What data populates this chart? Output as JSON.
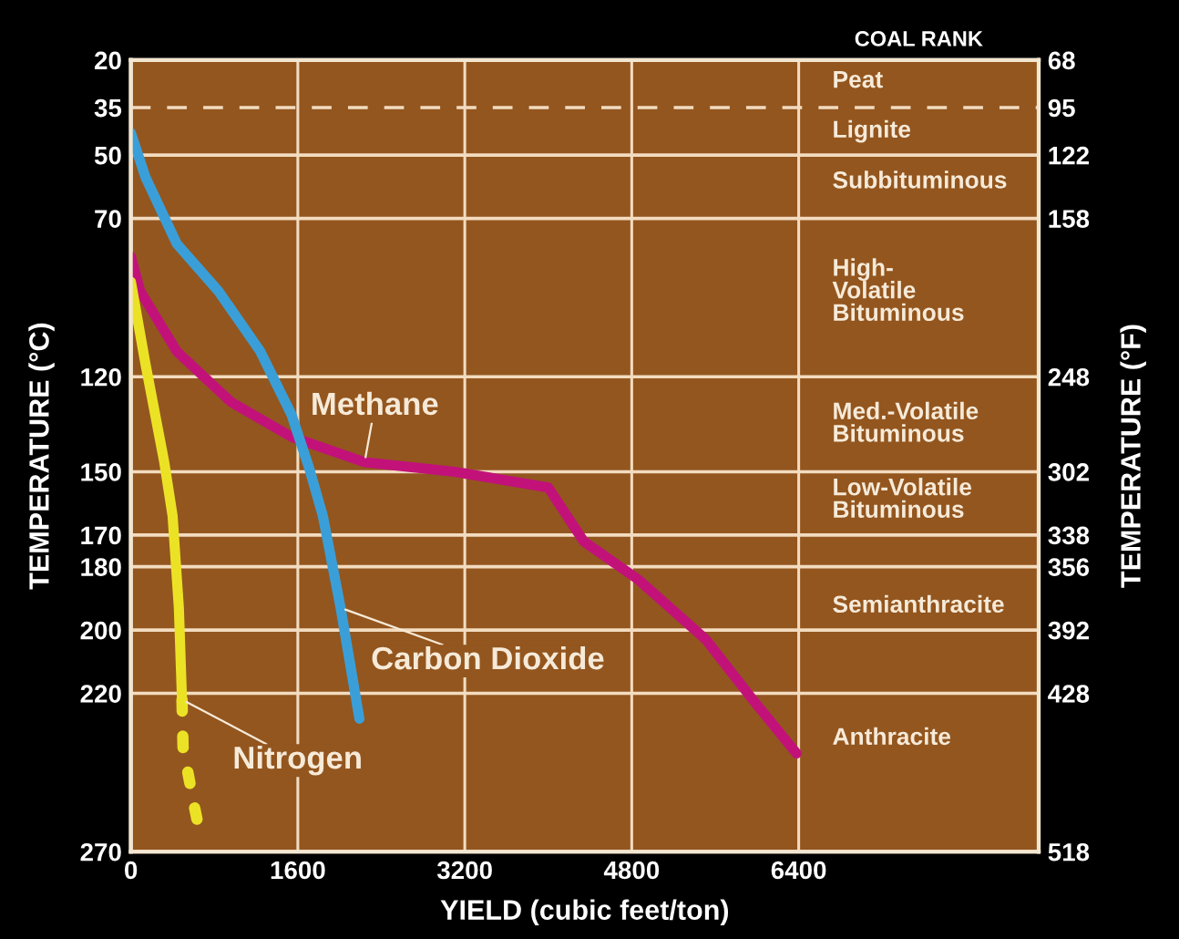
{
  "chart_data": {
    "type": "line",
    "xlabel": "YIELD (cubic feet/ton)",
    "ylabel": "TEMPERATURE (°C)",
    "y2label": "TEMPERATURE (°F)",
    "annotations": [
      "COAL RANK",
      "Peat",
      "Lignite",
      "Subbituminous",
      "High-\nVolatile\nBituminous",
      "Med.-Volatile\nBituminous",
      "Low-Volatile\nBituminous",
      "Semianthracite",
      "Anthracite"
    ],
    "xlim": [
      0,
      8700
    ],
    "xticks": [
      0,
      1600,
      3200,
      4800,
      6400
    ],
    "ylim": [
      270,
      20
    ],
    "yticks": [
      20,
      35,
      50,
      70,
      120,
      150,
      170,
      180,
      200,
      220,
      270
    ],
    "y2lim": [
      518,
      68
    ],
    "y2ticks": [
      68,
      95,
      122,
      158,
      248,
      302,
      338,
      356,
      392,
      428,
      518
    ],
    "grid": "x",
    "legend": false,
    "marker": "none",
    "series": [
      {
        "name": "Methane",
        "color": "#c2127a",
        "line_style": "solid",
        "x": [
          0,
          90,
          440,
          960,
          1540,
          2240,
          3100,
          4000,
          4340,
          4860,
          5510,
          5960,
          6380
        ],
        "values": [
          82,
          93,
          112,
          128,
          139,
          147,
          150,
          155,
          172,
          184,
          203,
          222,
          239
        ]
      },
      {
        "name": "Carbon Dioxide",
        "color": "#3a9fd8",
        "line_style": "solid",
        "x": [
          0,
          140,
          440,
          840,
          1240,
          1540,
          1710,
          1840,
          2010,
          2190
        ],
        "values": [
          43,
          57,
          78,
          93,
          112,
          132,
          149,
          164,
          193,
          228
        ]
      },
      {
        "name": "Nitrogen",
        "color": "#ece225",
        "line_style": "solid",
        "x": [
          0,
          140,
          320,
          400,
          460,
          490
        ],
        "values": [
          90,
          116,
          147,
          164,
          193,
          222
        ]
      },
      {
        "color": "#ece225",
        "line_style": "dotted",
        "x": [
          490,
          500,
          610,
          660
        ],
        "values": [
          222,
          237,
          256,
          264
        ]
      }
    ],
    "ref_lines": [
      {
        "axis": "y",
        "value": 35,
        "color": "#f3dcc0",
        "line_style": "dashed"
      },
      {
        "axis": "y",
        "value": 50,
        "color": "#f3dcc0",
        "line_style": "solid"
      },
      {
        "axis": "y",
        "value": 70,
        "color": "#f3dcc0",
        "line_style": "solid"
      },
      {
        "axis": "y",
        "value": 120,
        "color": "#f3dcc0",
        "line_style": "solid"
      },
      {
        "axis": "y",
        "value": 150,
        "color": "#f3dcc0",
        "line_style": "solid"
      },
      {
        "axis": "y",
        "value": 170,
        "color": "#f3dcc0",
        "line_style": "solid"
      },
      {
        "axis": "y",
        "value": 180,
        "color": "#f3dcc0",
        "line_style": "solid"
      },
      {
        "axis": "y",
        "value": 200,
        "color": "#f3dcc0",
        "line_style": "solid"
      },
      {
        "axis": "y",
        "value": 220,
        "color": "#f3dcc0",
        "line_style": "solid"
      }
    ]
  }
}
